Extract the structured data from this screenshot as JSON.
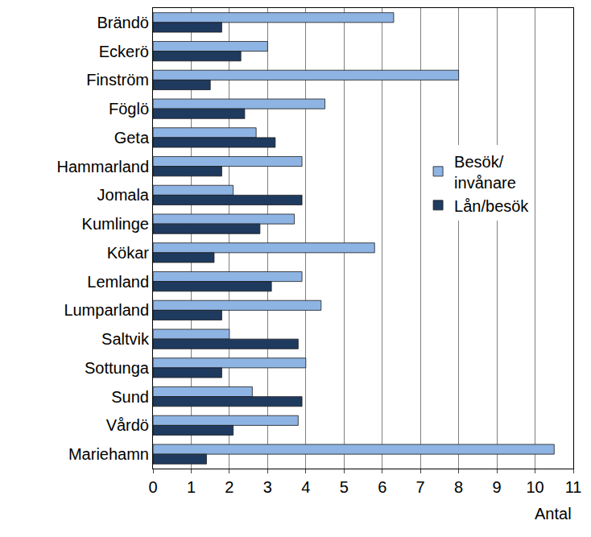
{
  "chart_data": {
    "type": "bar",
    "orientation": "horizontal",
    "x_label": "Antal",
    "categories": [
      "Brändö",
      "Eckerö",
      "Finström",
      "Föglö",
      "Geta",
      "Hammarland",
      "Jomala",
      "Kumlinge",
      "Kökar",
      "Lemland",
      "Lumparland",
      "Saltvik",
      "Sottunga",
      "Sund",
      "Vårdö",
      "Mariehamn"
    ],
    "series": [
      {
        "name": "Besök/\ninvånare",
        "color": "#8eb4e3",
        "values": [
          6.3,
          3.0,
          8.0,
          4.5,
          2.7,
          3.9,
          2.1,
          3.7,
          5.8,
          3.9,
          4.4,
          2.0,
          4.0,
          2.6,
          3.8,
          10.5
        ]
      },
      {
        "name": "Lån/besök",
        "color": "#1f3a5f",
        "values": [
          1.8,
          2.3,
          1.5,
          2.4,
          3.2,
          1.8,
          3.9,
          2.8,
          1.6,
          3.1,
          1.8,
          3.8,
          1.8,
          3.9,
          2.1,
          1.4
        ]
      }
    ],
    "xlim": [
      0,
      11
    ],
    "xticks": [
      0,
      1,
      2,
      3,
      4,
      5,
      6,
      7,
      8,
      9,
      10,
      11
    ],
    "grid": true,
    "legend": "right"
  }
}
